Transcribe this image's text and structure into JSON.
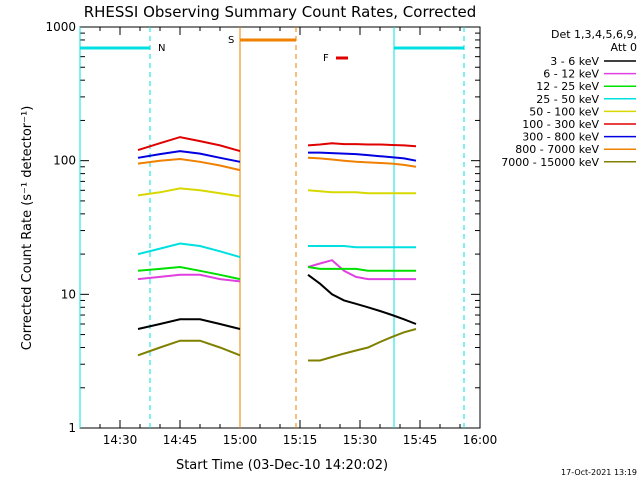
{
  "title": "RHESSI Observing Summary Count Rates, Corrected",
  "footer_date": "17-Oct-2021 13:19",
  "legend": {
    "header_line1": "Det 1,3,4,5,6,9,",
    "header_line2": "Att 0",
    "entries": [
      {
        "label": "3 - 6 keV",
        "color": "#000000"
      },
      {
        "label": "6 - 12 keV",
        "color": "#e040e0"
      },
      {
        "label": "12 - 25 keV",
        "color": "#00e000"
      },
      {
        "label": "25 - 50 keV",
        "color": "#00e0e0"
      },
      {
        "label": "50 - 100 keV",
        "color": "#d8d800"
      },
      {
        "label": "100 - 300 keV",
        "color": "#e00000"
      },
      {
        "label": "300 - 800 keV",
        "color": "#0000e0"
      },
      {
        "label": "800 - 7000 keV",
        "color": "#f08000"
      },
      {
        "label": "7000 - 15000 keV",
        "color": "#808000"
      }
    ]
  },
  "flags": {
    "night_label": "N",
    "saa_label": "S",
    "flare_label": "F",
    "night_color": "#00e0e0",
    "saa_color": "#f08000",
    "flare_color": "#e00000"
  },
  "chart_data": {
    "type": "line",
    "title": "RHESSI Observing Summary Count Rates, Corrected",
    "xlabel": "Start Time (03-Dec-10 14:20:02)",
    "ylabel": "Corrected Count Rate (s⁻¹ detector⁻¹)",
    "y_scale": "log",
    "ylim": [
      1,
      1000
    ],
    "y_ticks": [
      "1",
      "10",
      "100",
      "1000"
    ],
    "x_unit": "minutes after 14:20",
    "xlim": [
      0,
      100
    ],
    "x_ticks": [
      {
        "label": "14:30",
        "x": 10
      },
      {
        "label": "14:45",
        "x": 25
      },
      {
        "label": "15:00",
        "x": 40
      },
      {
        "label": "15:15",
        "x": 55
      },
      {
        "label": "15:30",
        "x": 70
      },
      {
        "label": "15:45",
        "x": 85
      },
      {
        "label": "16:00",
        "x": 100
      }
    ],
    "grid": false,
    "legend_position": "right",
    "night_intervals": [
      [
        0,
        17.5
      ],
      [
        78.5,
        96
      ]
    ],
    "saa_interval": [
      40,
      54
    ],
    "flare_interval": [
      64,
      67
    ],
    "series": [
      {
        "name": "3 - 6 keV",
        "color": "#000000",
        "segments": [
          {
            "x": [
              14.5,
              20,
              25,
              30,
              35,
              40
            ],
            "y": [
              5.5,
              6,
              6.5,
              6.5,
              6,
              5.5
            ]
          },
          {
            "x": [
              57,
              60,
              63,
              66,
              69,
              72,
              75,
              78,
              81,
              84
            ],
            "y": [
              14,
              12,
              10,
              9,
              8.5,
              8,
              7.5,
              7,
              6.5,
              6
            ]
          }
        ]
      },
      {
        "name": "6 - 12 keV",
        "color": "#e040e0",
        "segments": [
          {
            "x": [
              14.5,
              20,
              25,
              30,
              35,
              40
            ],
            "y": [
              13,
              13.5,
              14,
              14,
              13,
              12.5
            ]
          },
          {
            "x": [
              57,
              60,
              63,
              66,
              69,
              72,
              75,
              78,
              81,
              84
            ],
            "y": [
              16,
              17,
              18,
              15,
              13.5,
              13,
              13,
              13,
              13,
              13
            ]
          }
        ]
      },
      {
        "name": "12 - 25 keV",
        "color": "#00e000",
        "segments": [
          {
            "x": [
              14.5,
              20,
              25,
              30,
              35,
              40
            ],
            "y": [
              15,
              15.5,
              16,
              15,
              14,
              13
            ]
          },
          {
            "x": [
              57,
              60,
              63,
              66,
              69,
              72,
              75,
              78,
              81,
              84
            ],
            "y": [
              16,
              15.5,
              15.5,
              15.5,
              15.5,
              15,
              15,
              15,
              15,
              15
            ]
          }
        ]
      },
      {
        "name": "25 - 50 keV",
        "color": "#00e0e0",
        "segments": [
          {
            "x": [
              14.5,
              20,
              25,
              30,
              35,
              40
            ],
            "y": [
              20,
              22,
              24,
              23,
              21,
              19
            ]
          },
          {
            "x": [
              57,
              60,
              63,
              66,
              69,
              72,
              75,
              78,
              81,
              84
            ],
            "y": [
              23,
              23,
              23,
              23,
              22.5,
              22.5,
              22.5,
              22.5,
              22.5,
              22.5
            ]
          }
        ]
      },
      {
        "name": "50 - 100 keV",
        "color": "#d8d800",
        "segments": [
          {
            "x": [
              14.5,
              20,
              25,
              30,
              35,
              40
            ],
            "y": [
              55,
              58,
              62,
              60,
              57,
              54
            ]
          },
          {
            "x": [
              57,
              60,
              63,
              66,
              69,
              72,
              75,
              78,
              81,
              84
            ],
            "y": [
              60,
              59,
              58,
              58,
              58,
              57,
              57,
              57,
              57,
              57
            ]
          }
        ]
      },
      {
        "name": "100 - 300 keV",
        "color": "#e00000",
        "segments": [
          {
            "x": [
              14.5,
              20,
              25,
              30,
              35,
              40
            ],
            "y": [
              120,
              135,
              150,
              140,
              130,
              118
            ]
          },
          {
            "x": [
              57,
              60,
              63,
              66,
              69,
              72,
              75,
              78,
              81,
              84
            ],
            "y": [
              130,
              132,
              135,
              133,
              133,
              132,
              132,
              131,
              130,
              128
            ]
          }
        ]
      },
      {
        "name": "300 - 800 keV",
        "color": "#0000e0",
        "segments": [
          {
            "x": [
              14.5,
              20,
              25,
              30,
              35,
              40
            ],
            "y": [
              105,
              112,
              118,
              113,
              105,
              98
            ]
          },
          {
            "x": [
              57,
              60,
              63,
              66,
              69,
              72,
              75,
              78,
              81,
              84
            ],
            "y": [
              115,
              115,
              114,
              113,
              112,
              110,
              108,
              106,
              104,
              100
            ]
          }
        ]
      },
      {
        "name": "800 - 7000 keV",
        "color": "#f08000",
        "segments": [
          {
            "x": [
              14.5,
              20,
              25,
              30,
              35,
              40
            ],
            "y": [
              95,
              100,
              103,
              98,
              92,
              85
            ]
          },
          {
            "x": [
              57,
              60,
              63,
              66,
              69,
              72,
              75,
              78,
              81,
              84
            ],
            "y": [
              105,
              104,
              102,
              100,
              98,
              97,
              96,
              95,
              93,
              90
            ]
          }
        ]
      },
      {
        "name": "7000 - 15000 keV",
        "color": "#808000",
        "segments": [
          {
            "x": [
              14.5,
              20,
              25,
              30,
              35,
              40
            ],
            "y": [
              3.5,
              4,
              4.5,
              4.5,
              4,
              3.5
            ]
          },
          {
            "x": [
              57,
              60,
              63,
              66,
              69,
              72,
              75,
              78,
              81,
              84
            ],
            "y": [
              3.2,
              3.2,
              3.4,
              3.6,
              3.8,
              4,
              4.4,
              4.8,
              5.2,
              5.5
            ]
          }
        ]
      }
    ]
  }
}
